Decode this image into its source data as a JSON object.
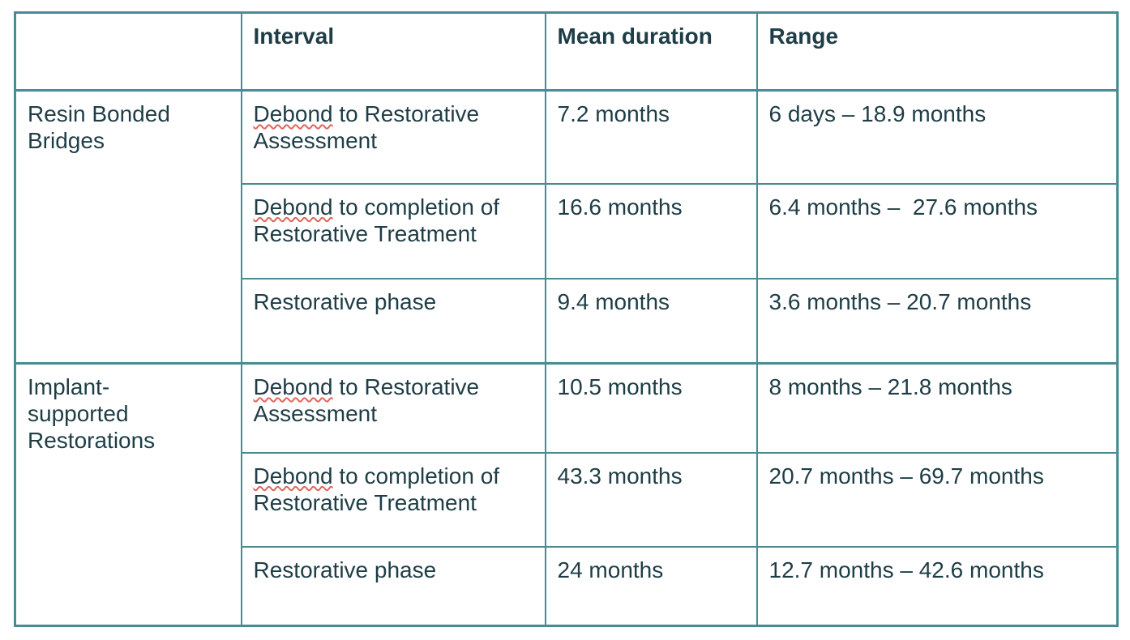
{
  "page": {
    "background_color": "#ffffff"
  },
  "table": {
    "border_color": "#4a8a93",
    "text_color": "#1e3d46",
    "cell_background": "#ffffff",
    "spellcheck_underline_color": "#e0655c",
    "headers": {
      "group": "",
      "interval": "Interval",
      "mean_duration": "Mean duration",
      "range": "Range"
    },
    "groups": [
      {
        "label": "Resin Bonded\nBridges",
        "rows": [
          {
            "interval_flagged_word": "Debond",
            "interval_rest": " to Restorative\nAssessment",
            "mean_duration": "7.2 months",
            "range": "6 days – 18.9 months"
          },
          {
            "interval_flagged_word": "Debond",
            "interval_rest": " to completion of\nRestorative Treatment",
            "mean_duration": "16.6 months",
            "range": "6.4 months –  27.6 months"
          },
          {
            "interval_flagged_word": "",
            "interval_rest": "Restorative phase",
            "mean_duration": "9.4 months",
            "range": "3.6 months – 20.7 months"
          }
        ]
      },
      {
        "label": "Implant-\nsupported\nRestorations",
        "rows": [
          {
            "interval_flagged_word": "Debond",
            "interval_rest": " to Restorative\nAssessment",
            "mean_duration": "10.5 months",
            "range": "8 months – 21.8 months"
          },
          {
            "interval_flagged_word": "Debond",
            "interval_rest": " to completion of\nRestorative Treatment",
            "mean_duration": "43.3 months",
            "range": "20.7 months – 69.7 months"
          },
          {
            "interval_flagged_word": "",
            "interval_rest": "Restorative phase",
            "mean_duration": "24 months",
            "range": "12.7 months – 42.6 months"
          }
        ]
      }
    ]
  }
}
